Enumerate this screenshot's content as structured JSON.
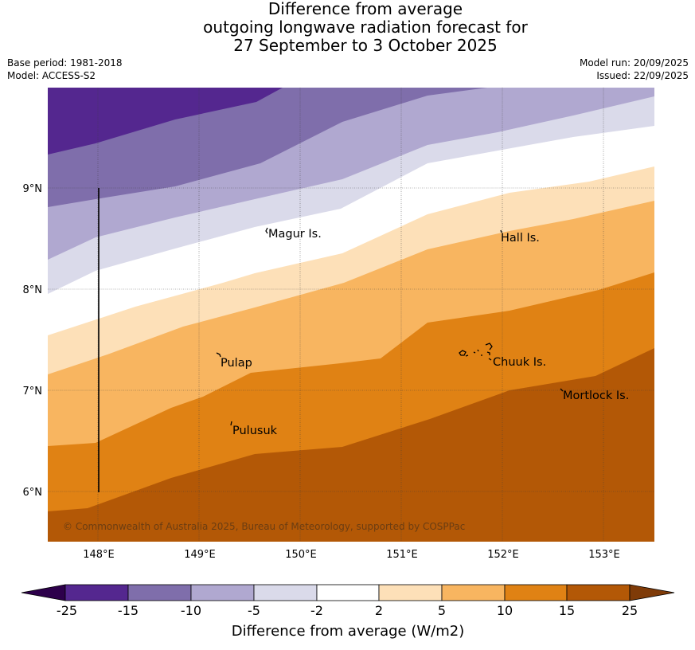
{
  "title_lines": [
    "Difference from average",
    "outgoing longwave radiation forecast for",
    "27 September to 3 October 2025"
  ],
  "base_period": "Base period: 1981-2018",
  "model": "Model: ACCESS-S2",
  "model_run": "Model run: 20/09/2025",
  "issued": "Issued: 22/09/2025",
  "map": {
    "lon_labels": [
      "148°E",
      "149°E",
      "150°E",
      "151°E",
      "152°E",
      "153°E"
    ],
    "lat_labels": [
      "9°N",
      "8°N",
      "7°N",
      "6°N"
    ],
    "places": [
      "Magur Is.",
      "Hall Is.",
      "Pulap",
      "Chuuk Is.",
      "Mortlock Is.",
      "Pulusuk"
    ],
    "copyright": "© Commonwealth of Australia 2025, Bureau of Meteorology, supported by COSPPac",
    "band_colors": [
      "#54278f",
      "#7f6eab",
      "#b0a8d0",
      "#dadaea",
      "#ffffff",
      "#fde0b8",
      "#f8b560",
      "#e08214",
      "#b35806"
    ]
  },
  "colorbar": {
    "labels": [
      "-25",
      "-15",
      "-10",
      "-5",
      "-2",
      "2",
      "5",
      "10",
      "15",
      "25"
    ],
    "colors": [
      "#2d004b",
      "#54278f",
      "#7f6eab",
      "#b0a8d0",
      "#dadaea",
      "#ffffff",
      "#fde0b8",
      "#f8b560",
      "#e08214",
      "#b35806",
      "#7f3b08"
    ],
    "title": "Difference from average (W/m2)"
  }
}
